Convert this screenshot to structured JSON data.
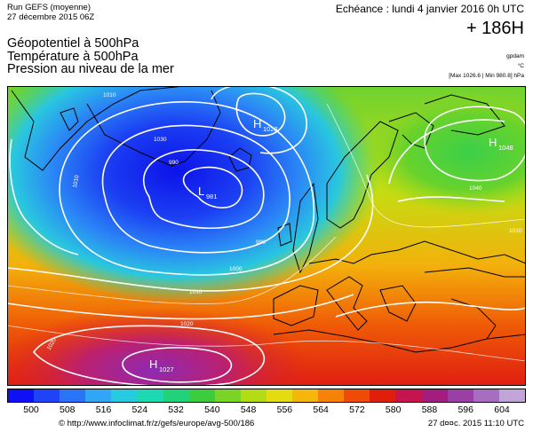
{
  "header": {
    "run": "Run GEFS (moyenne)",
    "run_date": "27 décembre 2015 06Z",
    "echeance": "Echéance : lundi 4 janvier 2016 0h UTC",
    "lead_time": "+ 186H"
  },
  "titles": [
    "Géopotentiel à 500hPa",
    "Température à 500hPa",
    "Pression au niveau de la mer"
  ],
  "units": {
    "geopotential": "gpdam",
    "temperature": "°C",
    "pressure_range": "[Max 1026.6 | Min 980.8] hPa"
  },
  "map": {
    "pressure_centers": [
      {
        "type": "H",
        "value": "1027"
      },
      {
        "type": "H",
        "value": "1048"
      },
      {
        "type": "H",
        "value": "1028"
      },
      {
        "type": "L",
        "value": "981"
      }
    ],
    "isobar_labels": [
      "1010",
      "1030",
      "990",
      "1010",
      "990",
      "1000",
      "1010",
      "1020",
      "1020",
      "1040",
      "1010"
    ]
  },
  "colorbar": {
    "colors": [
      "#1010f5",
      "#1f44f8",
      "#2a74f8",
      "#30a6f5",
      "#26cbe0",
      "#1cd9b2",
      "#21d27b",
      "#3ccd3e",
      "#7ad425",
      "#b3dc14",
      "#e3dc10",
      "#f5b70b",
      "#f68208",
      "#ef4a06",
      "#e01e0c",
      "#c5144e",
      "#a21d7e",
      "#9a3fa6",
      "#a66dc1",
      "#c2a5d8"
    ],
    "tick_labels": [
      "500",
      "508",
      "516",
      "524",
      "532",
      "540",
      "548",
      "556",
      "564",
      "572",
      "580",
      "588",
      "596",
      "604"
    ]
  },
  "footer": {
    "url": "© http://www.infoclimat.fr/z/gefs/europe/avg-500/186",
    "timestamp": "27 d¤¤c. 2015 11:10 UTC"
  },
  "colors": {
    "coast": "#000000",
    "isobars": "#ffffff"
  }
}
